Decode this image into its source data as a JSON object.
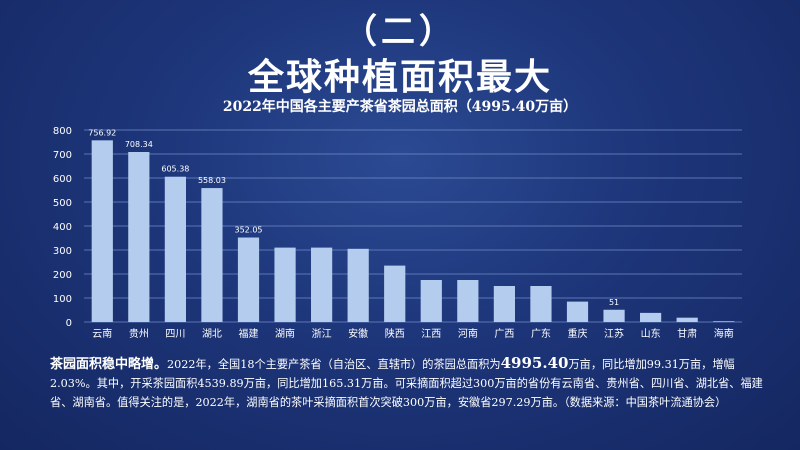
{
  "section_number": "（二）",
  "main_title": "全球种植面积最大",
  "chart_data": {
    "type": "bar",
    "title": "2022年中国各主要产茶省茶园总面积（4995.40万亩）",
    "xlabel": "",
    "ylabel": "",
    "ylim": [
      0,
      800
    ],
    "yticks": [
      0,
      100,
      200,
      300,
      400,
      500,
      600,
      700,
      800
    ],
    "grid": true,
    "categories": [
      "云南",
      "贵州",
      "四川",
      "湖北",
      "福建",
      "湖南",
      "浙江",
      "安徽",
      "陕西",
      "江西",
      "河南",
      "广西",
      "广东",
      "重庆",
      "江苏",
      "山东",
      "甘肃",
      "海南"
    ],
    "values": [
      756.92,
      708.34,
      605.38,
      558.03,
      352.05,
      310,
      310,
      305,
      235,
      175,
      175,
      150,
      150,
      85,
      51,
      38,
      18,
      3
    ],
    "data_labels": [
      "756.92",
      "708.34",
      "605.38",
      "558.03",
      "352.05",
      "",
      "",
      "",
      "",
      "",
      "",
      "",
      "",
      "",
      "51",
      "",
      "",
      ""
    ],
    "bar_color": "#b4cdef",
    "grid_color": "#6f8cc6"
  },
  "description": {
    "lead": "茶园面积稳中略增。",
    "text1": "2022年，全国18个主要产茶省（自治区、直辖市）的茶园总面积为",
    "big_value": "4995.40",
    "text2": "万亩，同比增加99.31万亩，增幅2.03%。其中，开采茶园面积4539.89万亩，同比增加165.31万亩。可采摘面积超过300万亩的省份有云南省、贵州省、四川省、湖北省、福建省、湖南省。值得关注的是，2022年，湖南省的茶叶采摘面积首次突破300万亩，安徽省297.29万亩。（数据来源：中国茶叶流通协会）"
  }
}
